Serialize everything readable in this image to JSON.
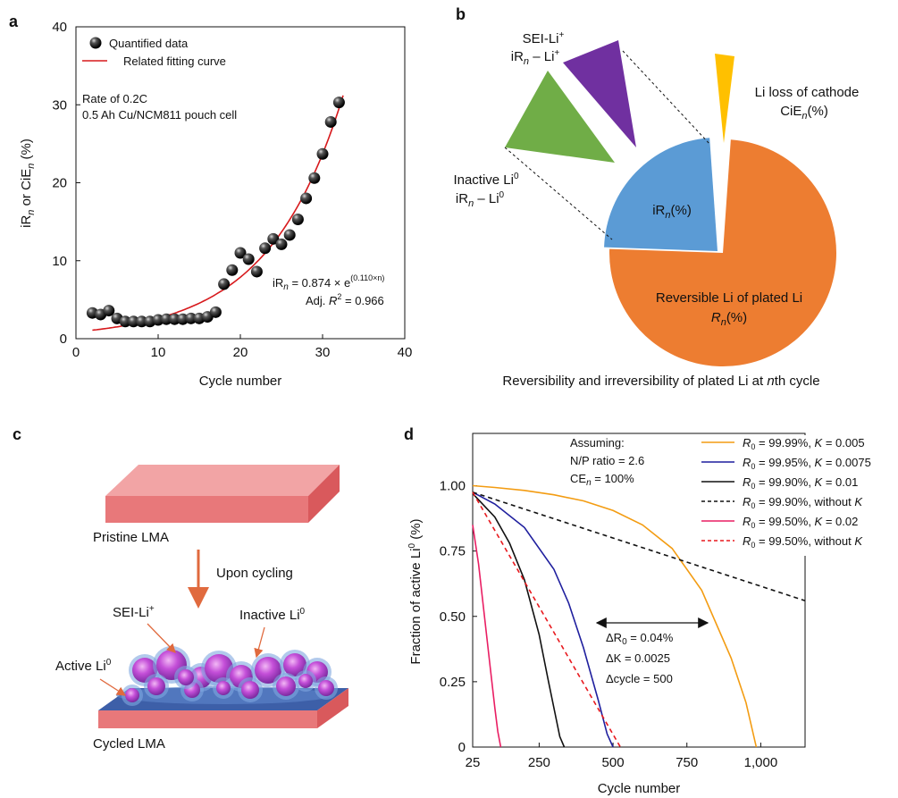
{
  "chart_data": [
    {
      "panel": "a",
      "type": "scatter",
      "xlabel": "Cycle number",
      "ylabel_main": "iR",
      "ylabel_sub1": "n",
      "ylabel_mid": " or CiE",
      "ylabel_sub2": "n",
      "ylabel_unit": " (%)",
      "xlim": [
        0,
        40
      ],
      "ylim": [
        0,
        40
      ],
      "xticks": [
        "0",
        "10",
        "20",
        "30",
        "40"
      ],
      "yticks": [
        "0",
        "10",
        "20",
        "30",
        "40"
      ],
      "series": [
        {
          "name": "Quantified data",
          "x": [
            2,
            3,
            4,
            5,
            6,
            7,
            8,
            9,
            10,
            11,
            12,
            13,
            14,
            15,
            16,
            17,
            18,
            19,
            20,
            21,
            22,
            23,
            24,
            25,
            26,
            27,
            28,
            29,
            30,
            31,
            32
          ],
          "y": [
            3.3,
            3.1,
            3.6,
            2.6,
            2.2,
            2.2,
            2.2,
            2.2,
            2.4,
            2.5,
            2.5,
            2.5,
            2.6,
            2.6,
            2.8,
            3.4,
            7.0,
            8.8,
            11.0,
            10.2,
            8.6,
            11.6,
            12.8,
            12.1,
            13.3,
            15.3,
            18.0,
            20.6,
            23.7,
            27.8,
            30.3
          ]
        },
        {
          "name": "Related fitting curve",
          "a": 0.874,
          "b": 0.11
        }
      ],
      "annotations": {
        "rate": "Rate of 0.2C",
        "cell": "0.5 Ah Cu/NCM811 pouch cell",
        "eq_lhs": "iR",
        "eq_sub": "n",
        "eq_rhs": " = 0.874 × e",
        "eq_exp": "(0.110×n)",
        "r2_pre": "Adj. ",
        "r2_r": "R",
        "r2_sup": "2",
        "r2_val": " = 0.966"
      },
      "colors": {
        "marker": "#111111",
        "fit": "#d7191c"
      }
    },
    {
      "panel": "b",
      "type": "pie",
      "slices": [
        {
          "name": "Reversible Li of plated Li",
          "value": 78.5,
          "color": "#ed7d31"
        },
        {
          "name": "iRn(%)",
          "value": 20.0,
          "color": "#5b9bd5"
        },
        {
          "name": "Li loss of cathode",
          "value": 1.5,
          "color": "#ffc000"
        },
        {
          "name": "Inactive Li0",
          "color": "#70ad47"
        },
        {
          "name": "SEI-Li+",
          "color": "#7030a0"
        }
      ],
      "labels": {
        "sei_l1": "SEI-Li",
        "sei_sup": "+",
        "sei_l2_pre": "iR",
        "sei_l2_sub": "n",
        "sei_l2_post": " – Li",
        "sei_l2_sup": "+",
        "inactive_l1": "Inactive Li",
        "inactive_sup": "0",
        "inactive_l2_pre": "iR",
        "inactive_l2_sub": "n",
        "inactive_l2_post": " – Li",
        "inactive_l2_sup": "0",
        "cathode_l1": "Li loss of cathode",
        "cathode_l2_pre": "CiE",
        "cathode_l2_sub": "n",
        "cathode_l2_post": "(%)",
        "irn_pre": "iR",
        "irn_sub": "n",
        "irn_post": "(%)",
        "rev_l1": "Reversible Li of plated Li",
        "rev_l2_pre": "R",
        "rev_l2_sub": "n",
        "rev_l2_post": "(%)",
        "caption_pre": "Reversibility and irreversibility of plated Li at ",
        "caption_n": "n",
        "caption_post": "th cycle"
      }
    },
    {
      "panel": "d",
      "type": "line",
      "xlabel": "Cycle number",
      "ylabel_main": "Fraction of active Li",
      "ylabel_sup": "0",
      "ylabel_unit": " (%)",
      "xlim": [
        25,
        1150
      ],
      "ylim": [
        0,
        1.2
      ],
      "xticks": [
        "25",
        "250",
        "500",
        "750",
        "1,000"
      ],
      "yticks": [
        "0",
        "0.25",
        "0.50",
        "0.75",
        "1.00"
      ],
      "series": [
        {
          "r": "R",
          "r_sub": "0",
          "rv": " = 99.99%, ",
          "k": "K",
          "kv": " = 0.005",
          "color": "#f39c12",
          "dashed": false,
          "x": [
            25,
            100,
            200,
            300,
            400,
            500,
            600,
            700,
            800,
            900,
            950,
            985
          ],
          "y": [
            1.0,
            0.993,
            0.982,
            0.965,
            0.942,
            0.905,
            0.85,
            0.76,
            0.6,
            0.34,
            0.17,
            0.0
          ]
        },
        {
          "r": "R",
          "r_sub": "0",
          "rv": " = 99.95%, ",
          "k": "K",
          "kv": " = 0.0075",
          "color": "#1f1f9e",
          "dashed": false,
          "x": [
            25,
            100,
            200,
            300,
            350,
            400,
            450,
            480,
            500
          ],
          "y": [
            0.975,
            0.93,
            0.84,
            0.68,
            0.55,
            0.38,
            0.18,
            0.05,
            0.0
          ]
        },
        {
          "r": "R",
          "r_sub": "0",
          "rv": " = 99.90%, ",
          "k": "K",
          "kv": " = 0.01",
          "color": "#111111",
          "dashed": false,
          "x": [
            25,
            100,
            150,
            200,
            250,
            280,
            300,
            320,
            335
          ],
          "y": [
            0.97,
            0.88,
            0.78,
            0.64,
            0.43,
            0.26,
            0.15,
            0.04,
            0.0
          ]
        },
        {
          "r": "R",
          "r_sub": "0",
          "rv": " = 99.90%, without ",
          "k": "K",
          "kv": "",
          "color": "#111111",
          "dashed": true,
          "x": [
            25,
            1150
          ],
          "y": [
            0.975,
            0.56
          ]
        },
        {
          "r": "R",
          "r_sub": "0",
          "rv": " = 99.50%, ",
          "k": "K",
          "kv": " = 0.02",
          "color": "#e91e63",
          "dashed": false,
          "x": [
            25,
            45,
            65,
            85,
            100,
            110,
            120
          ],
          "y": [
            0.85,
            0.7,
            0.5,
            0.3,
            0.15,
            0.06,
            0.0
          ]
        },
        {
          "r": "R",
          "r_sub": "0",
          "rv": " = 99.50%, without ",
          "k": "K",
          "kv": "",
          "color": "#e8191e",
          "dashed": true,
          "x": [
            25,
            525
          ],
          "y": [
            0.975,
            0.0
          ]
        }
      ],
      "assume_title": "Assuming:",
      "assume_np": "N/P ratio = 2.6",
      "assume_ce_pre": "CE",
      "assume_ce_sub": "n",
      "assume_ce_post": " = 100%",
      "delta_r_pre": "ΔR",
      "delta_r_sub": "0",
      "delta_r_post": " = 0.04%",
      "delta_k": "ΔK = 0.0025",
      "delta_cycle": "Δcycle = 500"
    }
  ],
  "panel_c": {
    "pristine": "Pristine LMA",
    "upon": "Upon cycling",
    "sei": "SEI-Li",
    "sei_sup": "+",
    "inactive": "Inactive Li",
    "inactive_sup": "0",
    "active": "Active Li",
    "active_sup": "0",
    "cycled": "Cycled LMA"
  },
  "panel_letters": {
    "a": "a",
    "b": "b",
    "c": "c",
    "d": "d"
  }
}
